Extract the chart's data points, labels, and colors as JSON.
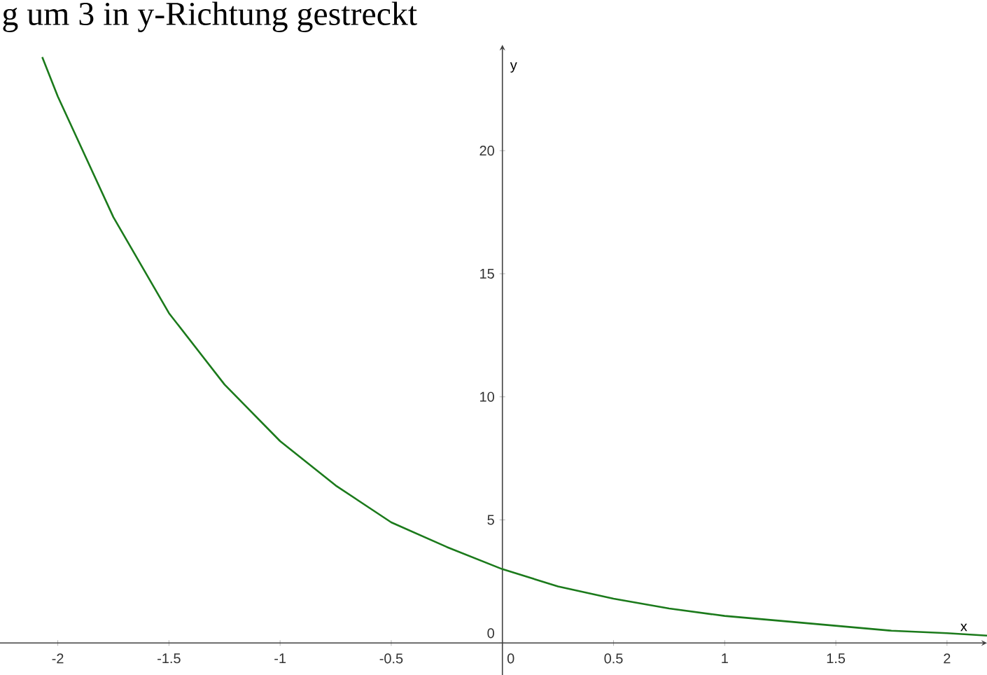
{
  "chart_data": {
    "type": "line",
    "title": "g um 3 in y-Richtung gestreckt",
    "xlabel": "x",
    "ylabel": "y",
    "x": [
      -2.07,
      -2,
      -1.75,
      -1.5,
      -1.25,
      -1,
      -0.75,
      -0.5,
      -0.25,
      0,
      0.25,
      0.5,
      0.75,
      1,
      1.25,
      1.5,
      1.75,
      2,
      2.18
    ],
    "series": [
      {
        "color": "#1b7a1b",
        "values": [
          23.8,
          22.2,
          17.3,
          13.4,
          10.5,
          8.2,
          6.4,
          4.9,
          3.9,
          3.0,
          2.3,
          1.8,
          1.4,
          1.1,
          0.9,
          0.7,
          0.5,
          0.4,
          0.3
        ]
      }
    ],
    "xlim": [
      -2.26,
      2.18
    ],
    "ylim": [
      -1.3,
      24.3
    ],
    "xticks": [
      -2,
      -1.5,
      -1,
      -0.5,
      0,
      0.5,
      1,
      1.5,
      2
    ],
    "yticks": [
      0,
      5,
      10,
      15,
      20
    ]
  }
}
